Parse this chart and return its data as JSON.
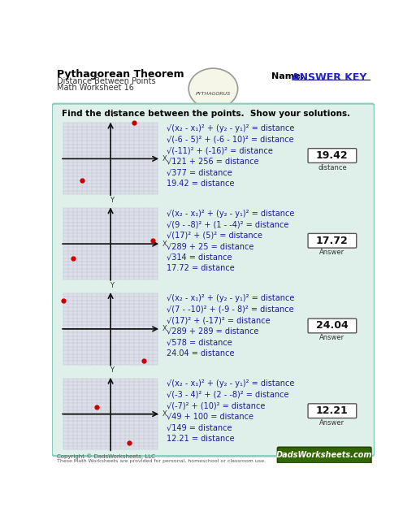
{
  "title": "Pythagorean Theorem",
  "subtitle1": "Distance Between Points",
  "subtitle2": "Math Worksheet 16",
  "name_label": "Name:",
  "answer_key": "ANSWER KEY",
  "instruction": "Find the distance between the points.  Show your solutions.",
  "bg_color": "#e8f5f0",
  "panel_outer_bg": "#d8eeea",
  "panel_bg": "#ffffff",
  "text_color_dark": "#1a1a99",
  "text_color_black": "#000000",
  "sqrt": "√",
  "problems": [
    {
      "lines": [
        "√(x₂ - x₁)² + (y₂ - y₁)² = distance",
        "√(-6 - 5)² + (-6 - 10)² = distance",
        "√(-11)² + (-16)² = distance",
        "√121 + 256 = distance",
        "√377 = distance",
        "19.42 = distance"
      ],
      "answer": "19.42",
      "answer_label": "distance",
      "point1": [
        5,
        10
      ],
      "point2": [
        -6,
        -6
      ]
    },
    {
      "lines": [
        "√(x₂ - x₁)² + (y₂ - y₁)² = distance",
        "√(9 - -8)² + (1 - -4)² = distance",
        "√(17)² + (5)² = distance",
        "√289 + 25 = distance",
        "√314 = distance",
        "17.72 = distance"
      ],
      "answer": "17.72",
      "answer_label": "Answer",
      "point1": [
        -8,
        -4
      ],
      "point2": [
        9,
        1
      ]
    },
    {
      "lines": [
        "√(x₂ - x₁)² + (y₂ - y₁)² = distance",
        "√(7 - -10)² + (-9 - 8)² = distance",
        "√(17)² + (-17)² = distance",
        "√289 + 289 = distance",
        "√578 = distance",
        "24.04 = distance"
      ],
      "answer": "24.04",
      "answer_label": "Answer",
      "point1": [
        -10,
        8
      ],
      "point2": [
        7,
        -9
      ]
    },
    {
      "lines": [
        "√(x₂ - x₁)² + (y₂ - y₁)² = distance",
        "√(-3 - 4)² + (2 - -8)² = distance",
        "√(-7)² + (10)² = distance",
        "√49 + 100 = distance",
        "√149 = distance",
        "12.21 = distance"
      ],
      "answer": "12.21",
      "answer_label": "Answer",
      "point1": [
        4,
        -8
      ],
      "point2": [
        -3,
        2
      ]
    }
  ]
}
